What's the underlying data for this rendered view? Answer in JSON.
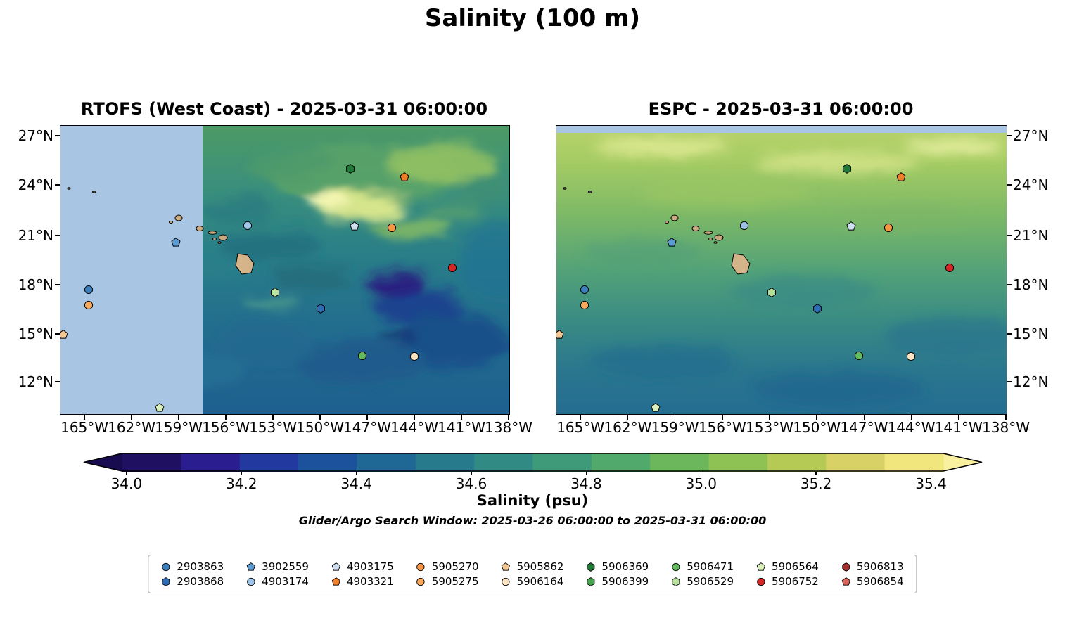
{
  "title": "Salinity (100 m)",
  "panels": [
    {
      "title": "RTOFS (West Coast) - 2025-03-31 06:00:00"
    },
    {
      "title": "ESPC - 2025-03-31 06:00:00"
    }
  ],
  "axes": {
    "lat_ticks": [
      "27°N",
      "24°N",
      "21°N",
      "18°N",
      "15°N",
      "12°N"
    ],
    "lon_ticks": [
      "165°W",
      "162°W",
      "159°W",
      "156°W",
      "153°W",
      "150°W",
      "147°W",
      "144°W",
      "141°W",
      "138°W"
    ]
  },
  "colorbar": {
    "label": "Salinity (psu)",
    "tick_labels": [
      "34.0",
      "34.2",
      "34.4",
      "34.6",
      "34.8",
      "35.0",
      "35.2",
      "35.4"
    ],
    "colors": [
      "#201061",
      "#2a1d8f",
      "#22399f",
      "#1c529c",
      "#1f6794",
      "#27798c",
      "#318a84",
      "#3f9a79",
      "#52a96c",
      "#6cb65c",
      "#8fc254",
      "#b4ca55",
      "#d8d166",
      "#f1e67e"
    ],
    "under_color": "#180b4f",
    "over_color": "#f9f0a0"
  },
  "search_window": "Glider/Argo Search Window: 2025-03-26 06:00:00 to 2025-03-31 06:00:00",
  "floats": {
    "2903863": {
      "shape": "circle",
      "color": "#3d7fbd"
    },
    "2903868": {
      "shape": "hexagon",
      "color": "#2f6cb3"
    },
    "3902559": {
      "shape": "pentagon",
      "color": "#5b9bd1"
    },
    "4903174": {
      "shape": "circle",
      "color": "#9fc6e8"
    },
    "4903175": {
      "shape": "pentagon",
      "color": "#cfe0f1"
    },
    "4903321": {
      "shape": "pentagon",
      "color": "#f07f2a"
    },
    "5905270": {
      "shape": "circle",
      "color": "#f79646"
    },
    "5905275": {
      "shape": "circle",
      "color": "#f9a85c"
    },
    "5905862": {
      "shape": "pentagon",
      "color": "#f5c791"
    },
    "5906164": {
      "shape": "circle",
      "color": "#fce3c2"
    },
    "5906369": {
      "shape": "hexagon",
      "color": "#1f7a38"
    },
    "5906399": {
      "shape": "hexagon",
      "color": "#46a34e"
    },
    "5906471": {
      "shape": "circle",
      "color": "#63bb5f"
    },
    "5906529": {
      "shape": "hexagon",
      "color": "#b9e2a1"
    },
    "5906564": {
      "shape": "pentagon",
      "color": "#d9f0bc"
    },
    "5906752": {
      "shape": "circle",
      "color": "#d62728"
    },
    "5906813": {
      "shape": "hexagon",
      "color": "#a83232"
    },
    "5906854": {
      "shape": "pentagon",
      "color": "#d96459"
    }
  },
  "legend_rows": [
    [
      "2903863",
      "3902559",
      "4903175",
      "5905270",
      "5905862",
      "5906369",
      "5906471",
      "5906564",
      "5906813"
    ],
    [
      "2903868",
      "4903174",
      "4903321",
      "5905275",
      "5906164",
      "5906399",
      "5906529",
      "5906752",
      "5906854"
    ]
  ],
  "markers": [
    {
      "id": "5906369",
      "x": 64.6,
      "y": 14.9
    },
    {
      "id": "4903321",
      "x": 76.6,
      "y": 17.8
    },
    {
      "id": "4903174",
      "x": 41.7,
      "y": 34.6
    },
    {
      "id": "4903175",
      "x": 65.5,
      "y": 34.9
    },
    {
      "id": "5905270",
      "x": 73.8,
      "y": 35.4
    },
    {
      "id": "3902559",
      "x": 25.7,
      "y": 40.5
    },
    {
      "id": "5906752",
      "x": 87.3,
      "y": 49.3
    },
    {
      "id": "2903863",
      "x": 6.3,
      "y": 56.8
    },
    {
      "id": "5905275",
      "x": 6.3,
      "y": 62.2
    },
    {
      "id": "5906529",
      "x": 47.8,
      "y": 57.8
    },
    {
      "id": "2903868",
      "x": 58.0,
      "y": 63.4
    },
    {
      "id": "5905862",
      "x": 0.6,
      "y": 72.4
    },
    {
      "id": "5906471",
      "x": 67.2,
      "y": 79.8
    },
    {
      "id": "5906164",
      "x": 78.8,
      "y": 80.0
    },
    {
      "id": "5906564",
      "x": 22.1,
      "y": 97.8
    }
  ],
  "chart_data": {
    "type": "heatmap",
    "title": "Salinity (100 m)",
    "variable": "Salinity",
    "units": "psu",
    "depth": "100 m",
    "panels": [
      {
        "name": "RTOFS (West Coast)",
        "valid_time": "2025-03-31 06:00:00",
        "note": "no-data region west of ~158.5°W shown as flat light blue"
      },
      {
        "name": "ESPC",
        "valid_time": "2025-03-31 06:00:00",
        "note": "thin light-blue no-data strip along top edge"
      }
    ],
    "lon_ticks_deg_w": [
      165,
      162,
      159,
      156,
      153,
      150,
      147,
      144,
      141,
      138
    ],
    "lat_ticks_deg_n": [
      27,
      24,
      21,
      18,
      15,
      12
    ],
    "lon_range_deg_w": [
      166.6,
      138.0
    ],
    "lat_range_deg_n": [
      10.2,
      27.6
    ],
    "colorbar": {
      "label": "Salinity (psu)",
      "min": 34.0,
      "max": 35.4,
      "tick_step": 0.2,
      "extend": "both"
    },
    "search_window": {
      "start": "2025-03-26 06:00:00",
      "end": "2025-03-31 06:00:00"
    },
    "float_positions": [
      {
        "id": "5906369",
        "lat_n": 25.0,
        "lon_w": 148.1
      },
      {
        "id": "4903321",
        "lat_n": 24.6,
        "lon_w": 144.7
      },
      {
        "id": "4903174",
        "lat_n": 21.6,
        "lon_w": 154.7
      },
      {
        "id": "4903175",
        "lat_n": 21.5,
        "lon_w": 147.8
      },
      {
        "id": "5905270",
        "lat_n": 21.4,
        "lon_w": 145.5
      },
      {
        "id": "3902559",
        "lat_n": 20.6,
        "lon_w": 159.2
      },
      {
        "id": "5906752",
        "lat_n": 19.0,
        "lon_w": 141.6
      },
      {
        "id": "2903863",
        "lat_n": 17.7,
        "lon_w": 164.8
      },
      {
        "id": "5905275",
        "lat_n": 16.8,
        "lon_w": 164.8
      },
      {
        "id": "5906529",
        "lat_n": 17.5,
        "lon_w": 152.9
      },
      {
        "id": "2903868",
        "lat_n": 16.5,
        "lon_w": 150.1
      },
      {
        "id": "5905862",
        "lat_n": 15.0,
        "lon_w": 166.4
      },
      {
        "id": "5906471",
        "lat_n": 13.6,
        "lon_w": 147.4
      },
      {
        "id": "5906164",
        "lat_n": 13.6,
        "lon_w": 144.1
      },
      {
        "id": "5906564",
        "lat_n": 10.4,
        "lon_w": 160.3
      }
    ]
  }
}
